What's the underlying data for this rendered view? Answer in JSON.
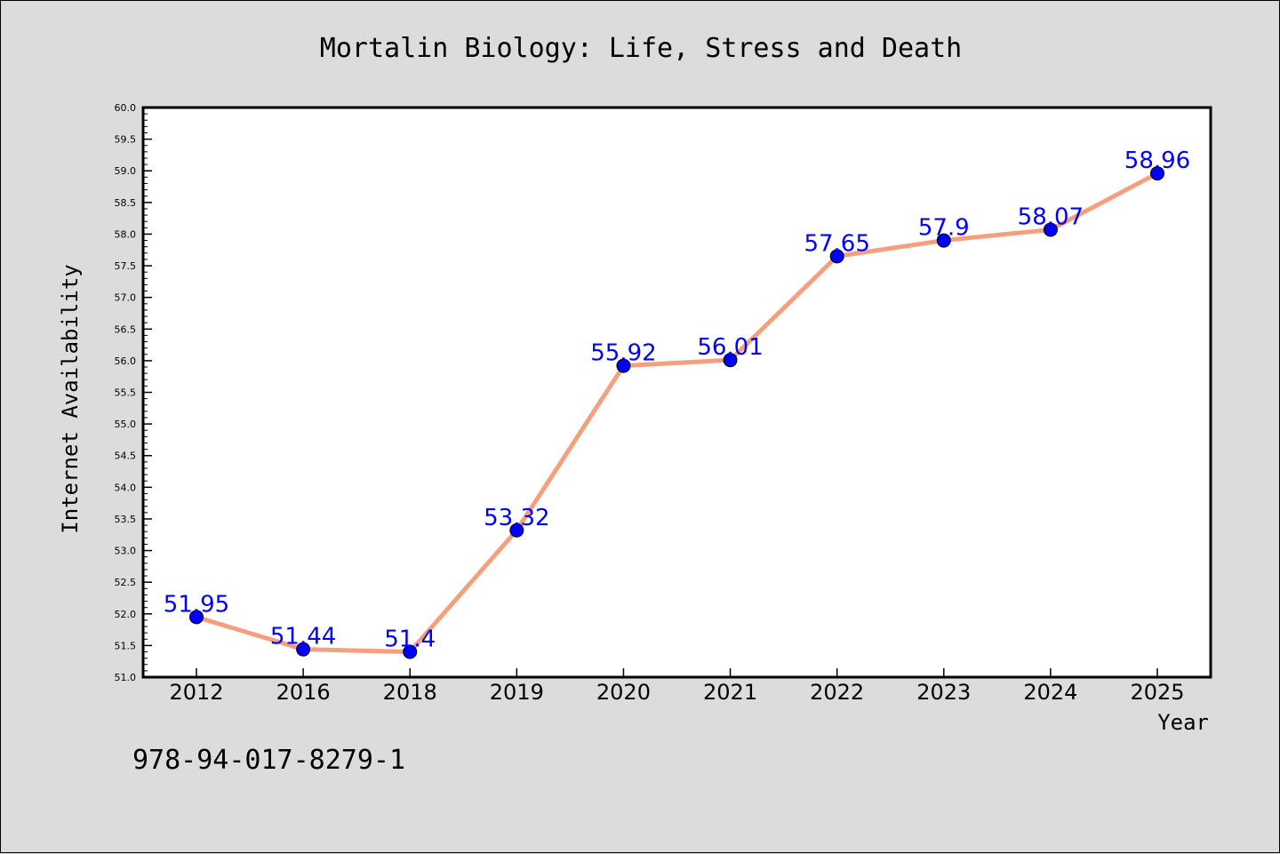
{
  "footer_code": "978-94-017-8279-1",
  "colors": {
    "background": "#dcdcdc",
    "plot_background": "#ffffff",
    "line": "#f4a07c",
    "marker": "#0000ff",
    "data_label": "#0000ff"
  },
  "chart_data": {
    "type": "line",
    "title": "Mortalin Biology: Life, Stress and Death",
    "xlabel": "Year",
    "ylabel": "Internet Availability",
    "categories": [
      "2012",
      "2016",
      "2018",
      "2019",
      "2020",
      "2021",
      "2022",
      "2023",
      "2024",
      "2025"
    ],
    "values": [
      51.95,
      51.44,
      51.4,
      53.32,
      55.92,
      56.01,
      57.65,
      57.9,
      58.07,
      58.96
    ],
    "data_labels": [
      "51.95",
      "51.44",
      "51.4",
      "53.32",
      "55.92",
      "56.01",
      "57.65",
      "57.9",
      "58.07",
      "58.96"
    ],
    "ylim": [
      51.0,
      60.0
    ],
    "ytick_labels": [
      "51.0",
      "51.5",
      "52.0",
      "52.5",
      "53.0",
      "53.5",
      "54.0",
      "54.5",
      "55.0",
      "55.5",
      "56.0",
      "56.5",
      "57.0",
      "57.5",
      "58.0",
      "58.5",
      "59.0",
      "59.5",
      "60.0"
    ],
    "grid": false,
    "legend": "none",
    "markers": true
  }
}
